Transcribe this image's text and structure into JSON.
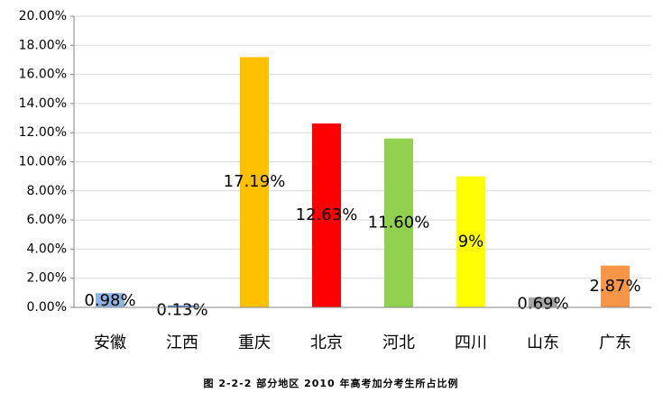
{
  "chart_data": {
    "type": "bar",
    "title": "图 2-2-2 部分地区 2010 年高考加分考生所占比例",
    "categories": [
      "安徽",
      "江西",
      "重庆",
      "北京",
      "河北",
      "四川",
      "山东",
      "广东"
    ],
    "values": [
      0.98,
      0.13,
      17.19,
      12.63,
      11.6,
      9,
      0.69,
      2.87
    ],
    "value_labels": [
      "0.98%",
      "0.13%",
      "17.19%",
      "12.63%",
      "11.60%",
      "9%",
      "0.69%",
      "2.87%"
    ],
    "colors": [
      "#8eb4e3",
      "#4f81bd",
      "#ffc000",
      "#ff0000",
      "#92d050",
      "#ffff00",
      "#a6a6a6",
      "#f79646"
    ],
    "ylim": [
      0,
      20
    ],
    "yticks": [
      {
        "value": 0,
        "label": "0.00%"
      },
      {
        "value": 2,
        "label": "2.00%"
      },
      {
        "value": 4,
        "label": "4.00%"
      },
      {
        "value": 6,
        "label": "6.00%"
      },
      {
        "value": 8,
        "label": "8.00%"
      },
      {
        "value": 10,
        "label": "10.00%"
      },
      {
        "value": 12,
        "label": "12.00%"
      },
      {
        "value": 14,
        "label": "14.00%"
      },
      {
        "value": 16,
        "label": "16.00%"
      },
      {
        "value": 18,
        "label": "18.00%"
      },
      {
        "value": 20,
        "label": "20.00%"
      }
    ],
    "grid": true
  }
}
